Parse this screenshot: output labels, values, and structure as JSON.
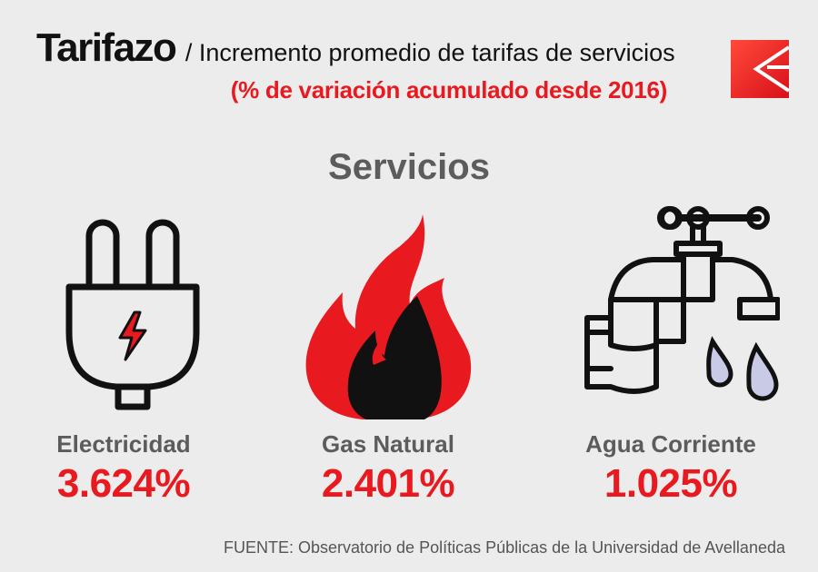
{
  "header": {
    "title": "Tarifazo",
    "subtitle_line1": "/ Incremento promedio de tarifas de servicios",
    "subtitle_line2": "(% de variación acumulado desde 2016)"
  },
  "section_title": "Servicios",
  "services": [
    {
      "label": "Electricidad",
      "value": "3.624%",
      "icon": "electric-plug-icon"
    },
    {
      "label": "Gas Natural",
      "value": "2.401%",
      "icon": "flame-icon"
    },
    {
      "label": "Agua Corriente",
      "value": "1.025%",
      "icon": "water-faucet-icon"
    }
  ],
  "source": "FUENTE: Observatorio de Políticas Públicas de la Universidad de Avellaneda",
  "colors": {
    "accent": "#e8191f",
    "text_dark": "#111111",
    "text_gray": "#5c5c5c",
    "background": "#ececec"
  }
}
